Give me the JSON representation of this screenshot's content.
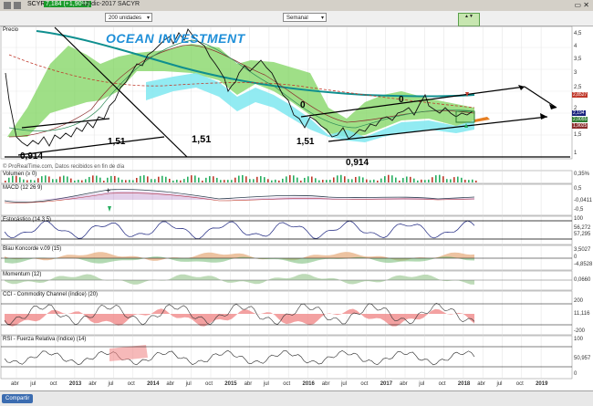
{
  "window": {
    "symbol": "SCYR",
    "price_badge": "7,184 (+1,90%)",
    "date": "12-dic-2017",
    "company": "SACYR"
  },
  "toolbar": {
    "units_select": "200 unidades",
    "period_select": "Semanal"
  },
  "chart": {
    "watermark": "OCEAN INVESTMENT",
    "price_label": "Precio",
    "source_note": "© ProRealTime.com, Datos recibidos en fin de día",
    "annotations": {
      "a1": "0,914",
      "a2": "1,51",
      "a3": "1,51",
      "a4": "1,51",
      "a5": "0,914",
      "a6": "0",
      "a7": "0"
    },
    "price_axis": [
      "4,5",
      "4",
      "3,5",
      "3",
      "2,5",
      "2",
      "1,5",
      "1"
    ],
    "price_badges": {
      "b1": "2,8527",
      "b2": "2,194",
      "b3": "2,0055",
      "b4": "1,9025"
    }
  },
  "indicators": {
    "volumen": {
      "label": "Volumen (≥ 0)",
      "axis": [
        "0,35%",
        "-0,05%"
      ]
    },
    "macd": {
      "label": "MACD (12 26 9)",
      "axis": [
        "0,5",
        "-0,0411",
        "-0,5"
      ]
    },
    "estocastico": {
      "label": "Estocástico (14 3 5)",
      "axis": [
        "100",
        "56,272",
        "57,295"
      ]
    },
    "blau": {
      "label": "Blau Koncorde v.09 (15)",
      "axis": [
        "3,5027",
        "0",
        "-4,8528"
      ]
    },
    "momentum": {
      "label": "Momentum (12)",
      "axis": [
        "0,0660"
      ]
    },
    "cci": {
      "label": "CCI - Commodity Channel (índice) (20)",
      "axis": [
        "200",
        "11,116",
        "-200"
      ]
    },
    "rsi": {
      "label": "RSI - Fuerza Relativa (índice) (14)",
      "axis": [
        "100",
        "50,957",
        "0"
      ]
    }
  },
  "x_axis": [
    "abr",
    "jul",
    "oct",
    "2013",
    "abr",
    "jul",
    "oct",
    "2014",
    "abr",
    "jul",
    "oct",
    "2015",
    "abr",
    "jul",
    "oct",
    "2016",
    "abr",
    "jul",
    "oct",
    "2017",
    "abr",
    "jul",
    "oct",
    "2018",
    "abr",
    "jul",
    "oct",
    "2019"
  ],
  "footer": {
    "share_button": "Compartir"
  },
  "colors": {
    "cloud_green": "#7fd45f",
    "cloud_cyan": "#7fe8f0",
    "price_line": "#111111",
    "ma_teal": "#0f8f8f",
    "ma_red": "#c0392b",
    "watermark": "#1f8fd8"
  }
}
